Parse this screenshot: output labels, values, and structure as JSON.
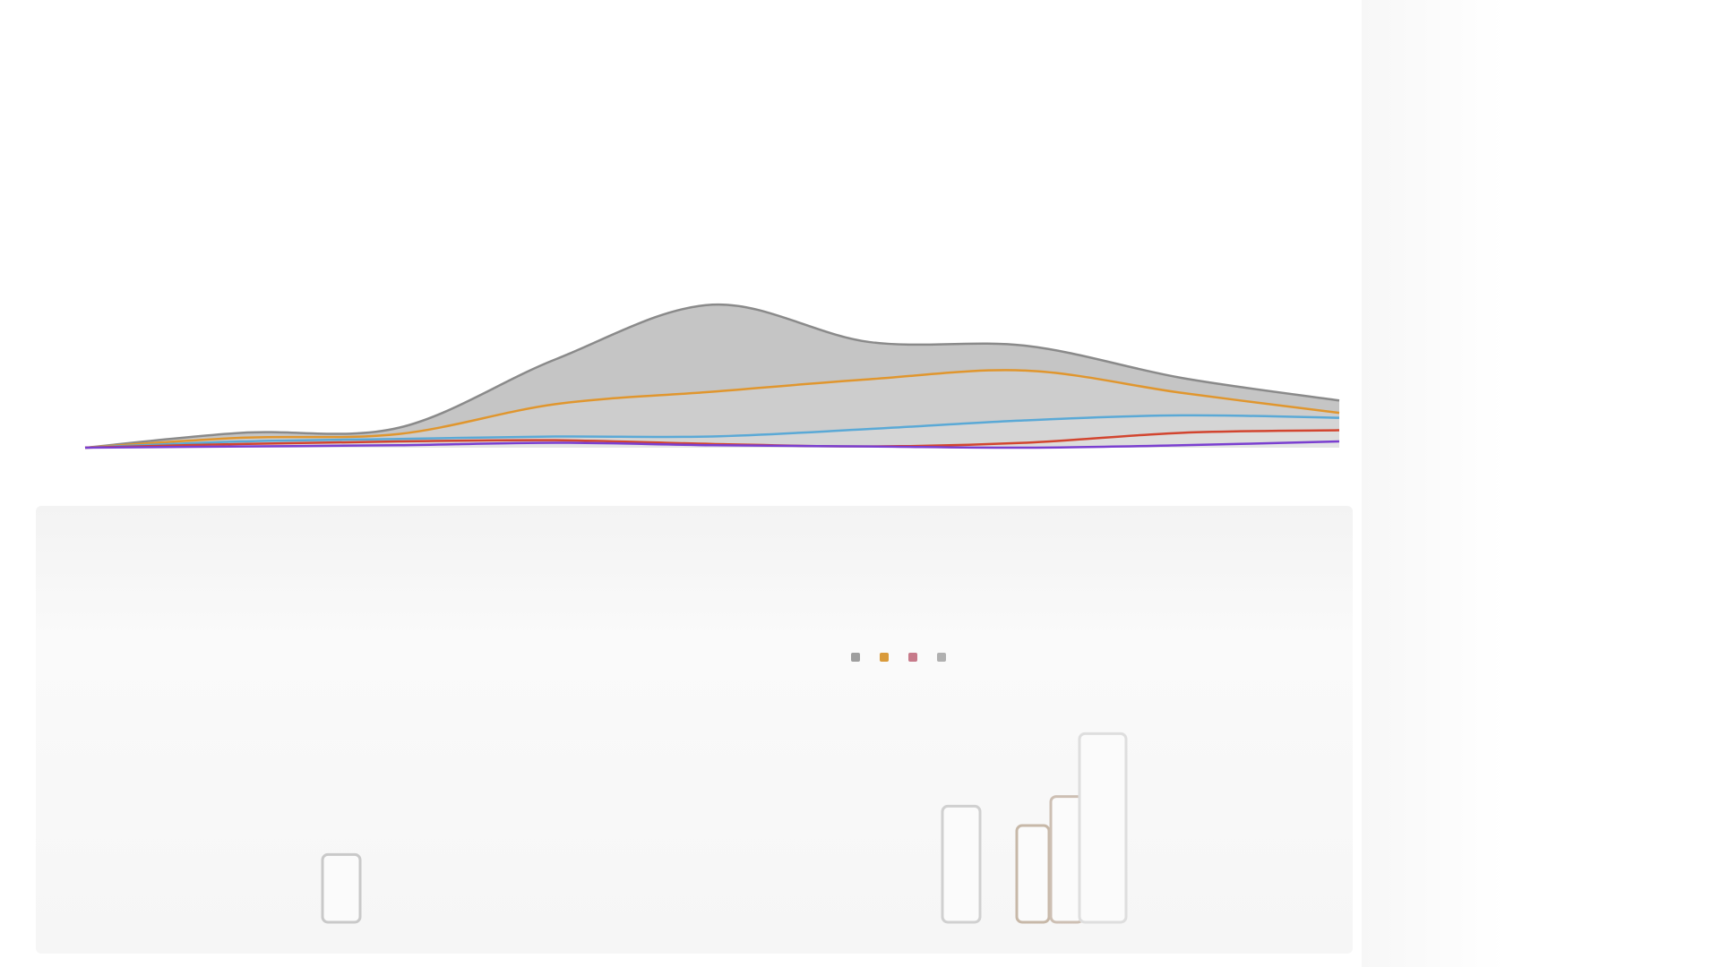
{
  "chart_data": {
    "type": "area",
    "stacked": true,
    "smooth": true,
    "title": "",
    "xlabel": "",
    "ylabel": "",
    "grid": false,
    "categories": [
      "",
      "",
      "",
      ""
    ],
    "x": [
      0,
      1,
      2,
      3,
      4,
      5,
      6,
      7,
      8
    ],
    "series": [
      {
        "name": "",
        "color": "#7a3fd0",
        "values": [
          0,
          1,
          2,
          4,
          2,
          1,
          0,
          2,
          5
        ]
      },
      {
        "name": "",
        "color": "#d2452f",
        "values": [
          0,
          2,
          3,
          2,
          1,
          0,
          4,
          10,
          9
        ]
      },
      {
        "name": "",
        "color": "#5aa9d6",
        "values": [
          0,
          2,
          2,
          3,
          6,
          14,
          18,
          14,
          10
        ]
      },
      {
        "name": "",
        "color": "#e0962e",
        "values": [
          0,
          3,
          4,
          26,
          36,
          40,
          40,
          18,
          4
        ]
      },
      {
        "name": "",
        "color": "#8a8a8a",
        "values": [
          0,
          4,
          5,
          36,
          70,
          30,
          20,
          12,
          10
        ]
      }
    ],
    "legend": {
      "placement": "bottom-right",
      "entries": [
        {
          "label": "",
          "color": "#9e9e9e"
        },
        {
          "label": "",
          "color": "#d99a3a"
        },
        {
          "label": "",
          "color": "#c77a8a"
        },
        {
          "label": "",
          "color": "#b0b0b0"
        }
      ]
    },
    "bars": [
      {
        "value": 28,
        "color": "#c9c9c9"
      },
      {
        "value": 48,
        "color": "#d0d0d0"
      },
      {
        "value": 40,
        "color": "#c7b8a8"
      },
      {
        "value": 52,
        "color": "#cdbfb3"
      },
      {
        "value": 78,
        "color": "#dedede"
      }
    ],
    "bar_ylim": [
      0,
      100
    ],
    "ylim": [
      0,
      180
    ]
  },
  "captions": {
    "right_1": "",
    "right_2": ""
  }
}
